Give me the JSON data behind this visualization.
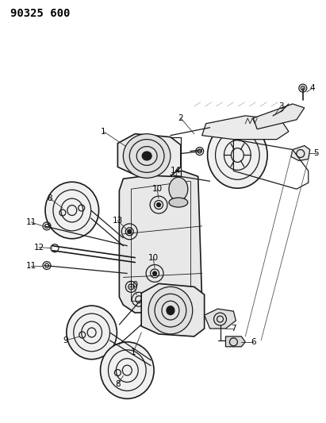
{
  "title": "90325 600",
  "bg_color": "#ffffff",
  "fig_width": 4.11,
  "fig_height": 5.33,
  "dpi": 100,
  "line_color": "#1a1a1a",
  "lw_main": 0.9,
  "lw_thin": 0.6,
  "lw_thick": 1.2
}
